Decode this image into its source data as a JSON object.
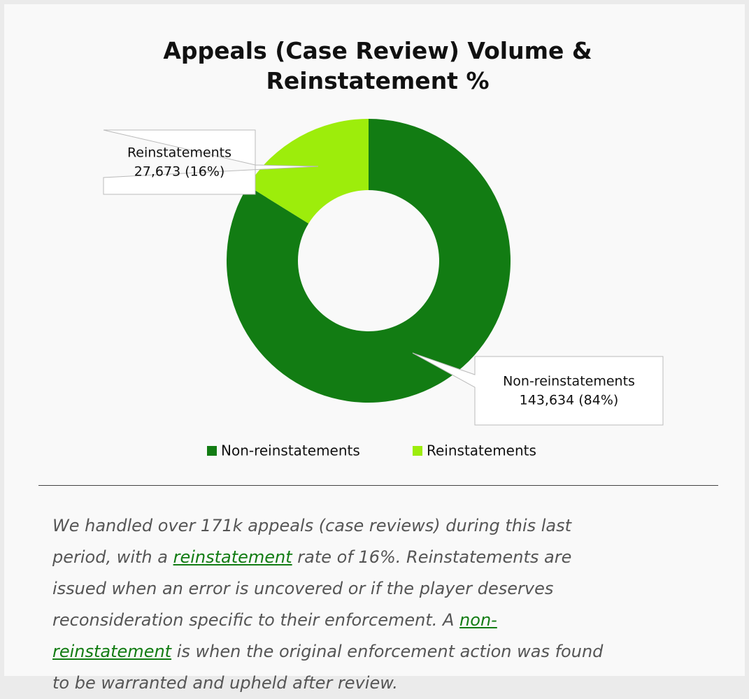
{
  "chart_data": {
    "type": "donut",
    "title": "Appeals (Case Review) Volume & Reinstatement %",
    "categories": [
      "Non-reinstatements",
      "Reinstatements"
    ],
    "values": [
      143634,
      27673
    ],
    "value_labels": [
      "143,634  (84%)",
      "27,673  (16%)"
    ],
    "colors": [
      "#127c13",
      "#9ded0b"
    ],
    "legend": "bottom"
  },
  "description": [
    "We handled over 171k appeals (case reviews) during this last period, with a ",
    "reinstatement",
    " rate of 16%. Reinstatements are issued when an error is uncovered or if the player deserves reconsideration specific to their enforcement. A ",
    "non-reinstatement",
    " is when the original enforcement action was found to be warranted and upheld after review."
  ]
}
